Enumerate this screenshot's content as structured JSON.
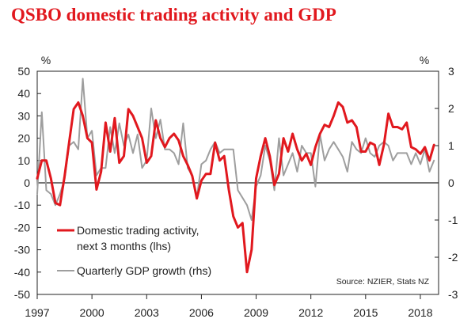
{
  "chart_data": {
    "type": "line",
    "title": "QSBO domestic trading activity and GDP",
    "left_axis": {
      "unit": "%",
      "ylim": [
        -50,
        50
      ],
      "ticks": [
        50,
        40,
        30,
        20,
        10,
        0,
        -10,
        -20,
        -30,
        -40,
        -50
      ]
    },
    "right_axis": {
      "unit": "%",
      "ylim": [
        -3,
        3
      ],
      "ticks": [
        3,
        2,
        1,
        0,
        -1,
        -2,
        -3
      ]
    },
    "x_axis": {
      "xlim": [
        1997,
        2019
      ],
      "ticks": [
        1997,
        2000,
        2003,
        2006,
        2009,
        2012,
        2015,
        2018
      ]
    },
    "grid": false,
    "legend_position": "lower-left",
    "source": "Source: NZIER, Stats NZ",
    "colors": {
      "domestic": "#e1181e",
      "gdp": "#9e9e9e",
      "title": "#e1181e",
      "zero_line": "#222222"
    },
    "series": [
      {
        "name": "Domestic trading activity, next 3 months (lhs)",
        "axis": "left",
        "x": [
          1997.0,
          1997.25,
          1997.5,
          1997.75,
          1998.0,
          1998.25,
          1998.5,
          1998.75,
          1999.0,
          1999.25,
          1999.5,
          1999.75,
          2000.0,
          2000.25,
          2000.5,
          2000.75,
          2001.0,
          2001.25,
          2001.5,
          2001.75,
          2002.0,
          2002.25,
          2002.5,
          2002.75,
          2003.0,
          2003.25,
          2003.5,
          2003.75,
          2004.0,
          2004.25,
          2004.5,
          2004.75,
          2005.0,
          2005.25,
          2005.5,
          2005.75,
          2006.0,
          2006.25,
          2006.5,
          2006.75,
          2007.0,
          2007.25,
          2007.5,
          2007.75,
          2008.0,
          2008.25,
          2008.5,
          2008.75,
          2009.0,
          2009.25,
          2009.5,
          2009.75,
          2010.0,
          2010.25,
          2010.5,
          2010.75,
          2011.0,
          2011.25,
          2011.5,
          2011.75,
          2012.0,
          2012.25,
          2012.5,
          2012.75,
          2013.0,
          2013.25,
          2013.5,
          2013.75,
          2014.0,
          2014.25,
          2014.5,
          2014.75,
          2015.0,
          2015.25,
          2015.5,
          2015.75,
          2016.0,
          2016.25,
          2016.5,
          2016.75,
          2017.0,
          2017.25,
          2017.5,
          2017.75,
          2018.0,
          2018.25,
          2018.5,
          2018.75
        ],
        "values": [
          2,
          10,
          10,
          2,
          -9,
          -10,
          3,
          18,
          33,
          36,
          30,
          20,
          18,
          -3,
          5,
          27,
          14,
          29,
          9,
          12,
          33,
          30,
          25,
          20,
          9,
          12,
          28,
          20,
          16,
          20,
          22,
          19,
          12,
          8,
          3,
          -7,
          1,
          4,
          4,
          18,
          10,
          12,
          -3,
          -15,
          -20,
          -18,
          -40,
          -30,
          2,
          12,
          20,
          12,
          -1,
          4,
          20,
          14,
          22,
          15,
          10,
          13,
          8,
          16,
          22,
          26,
          25,
          30,
          36,
          34,
          27,
          28,
          25,
          14,
          14,
          18,
          17,
          8,
          17,
          31,
          25,
          25,
          24,
          27,
          16,
          15,
          13,
          16,
          10,
          17
        ]
      },
      {
        "name": "Quarterly GDP growth (rhs)",
        "axis": "right",
        "x": [
          1997.0,
          1997.25,
          1997.5,
          1997.75,
          1998.0,
          1998.25,
          1998.5,
          1998.75,
          1999.0,
          1999.25,
          1999.5,
          1999.75,
          2000.0,
          2000.25,
          2000.5,
          2000.75,
          2001.0,
          2001.25,
          2001.5,
          2001.75,
          2002.0,
          2002.25,
          2002.5,
          2002.75,
          2003.0,
          2003.25,
          2003.5,
          2003.75,
          2004.0,
          2004.25,
          2004.5,
          2004.75,
          2005.0,
          2005.25,
          2005.5,
          2005.75,
          2006.0,
          2006.25,
          2006.5,
          2006.75,
          2007.0,
          2007.25,
          2007.5,
          2007.75,
          2008.0,
          2008.25,
          2008.5,
          2008.75,
          2009.0,
          2009.25,
          2009.5,
          2009.75,
          2010.0,
          2010.25,
          2010.5,
          2010.75,
          2011.0,
          2011.25,
          2011.5,
          2011.75,
          2012.0,
          2012.25,
          2012.5,
          2012.75,
          2013.0,
          2013.25,
          2013.5,
          2013.75,
          2014.0,
          2014.25,
          2014.5,
          2014.75,
          2015.0,
          2015.25,
          2015.5,
          2015.75,
          2016.0,
          2016.25,
          2016.5,
          2016.75,
          2017.0,
          2017.25,
          2017.5,
          2017.75,
          2018.0,
          2018.25,
          2018.5,
          2018.75
        ],
        "values": [
          -0.3,
          1.9,
          -0.2,
          -0.3,
          -0.6,
          -0.3,
          0.1,
          1.0,
          1.1,
          0.9,
          2.8,
          1.2,
          1.4,
          0.2,
          0.4,
          0.4,
          1.5,
          0.8,
          1.6,
          1.0,
          1.3,
          0.8,
          1.3,
          0.4,
          0.6,
          2.0,
          1.2,
          1.7,
          0.9,
          0.9,
          0.8,
          0.5,
          1.6,
          0.4,
          0.2,
          -0.4,
          0.5,
          0.6,
          0.9,
          1.1,
          0.8,
          0.9,
          0.9,
          0.9,
          -0.2,
          -0.4,
          -0.6,
          -1.0,
          -0.1,
          0.2,
          1.0,
          0.6,
          -0.2,
          1.2,
          0.2,
          0.5,
          0.8,
          0.3,
          1.0,
          0.8,
          0.8,
          -0.1,
          1.3,
          0.6,
          0.9,
          1.1,
          0.9,
          0.7,
          0.3,
          1.1,
          0.9,
          0.8,
          1.2,
          0.8,
          0.7,
          1.0,
          1.1,
          1.0,
          0.6,
          0.8,
          0.8,
          0.8,
          0.5,
          0.8,
          0.5,
          0.9,
          0.3,
          0.6
        ]
      }
    ]
  }
}
